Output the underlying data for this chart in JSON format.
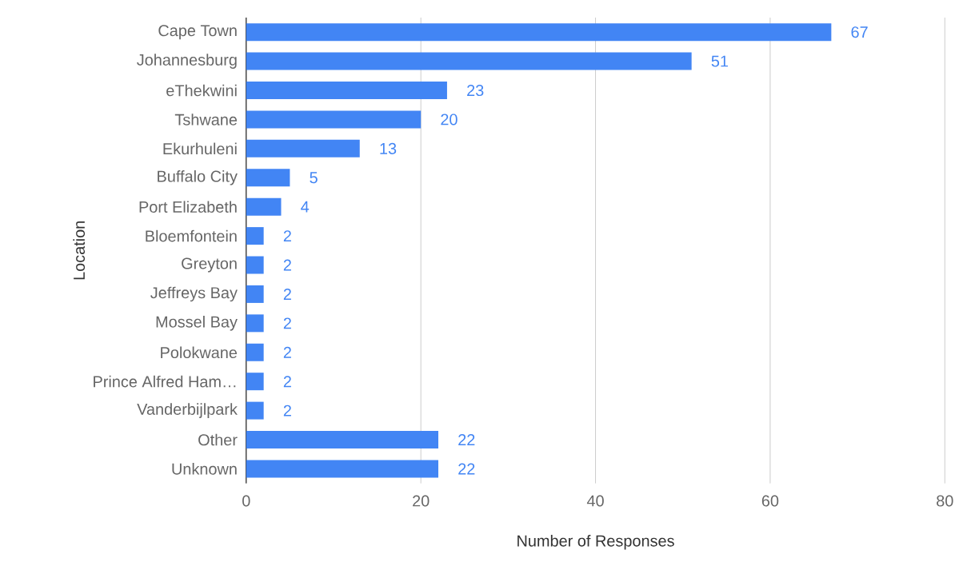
{
  "chart_data": {
    "type": "bar",
    "orientation": "horizontal",
    "xlabel": "Number of Responses",
    "ylabel": "Location",
    "categories": [
      "Cape Town",
      "Johannesburg",
      "eThekwini",
      "Tshwane",
      "Ekurhuleni",
      "Buffalo City",
      "Port Elizabeth",
      "Bloemfontein",
      "Greyton",
      "Jeffreys Bay",
      "Mossel Bay",
      "Polokwane",
      "Prince Alfred Ham…",
      "Vanderbijlpark",
      "Other",
      "Unknown"
    ],
    "values": [
      67,
      51,
      23,
      20,
      13,
      5,
      4,
      2,
      2,
      2,
      2,
      2,
      2,
      2,
      22,
      22
    ],
    "color": "#4285f4",
    "xlim": [
      0,
      80
    ],
    "xticks": [
      0,
      20,
      40,
      60,
      80
    ],
    "grid": "x",
    "data_labels": true
  }
}
